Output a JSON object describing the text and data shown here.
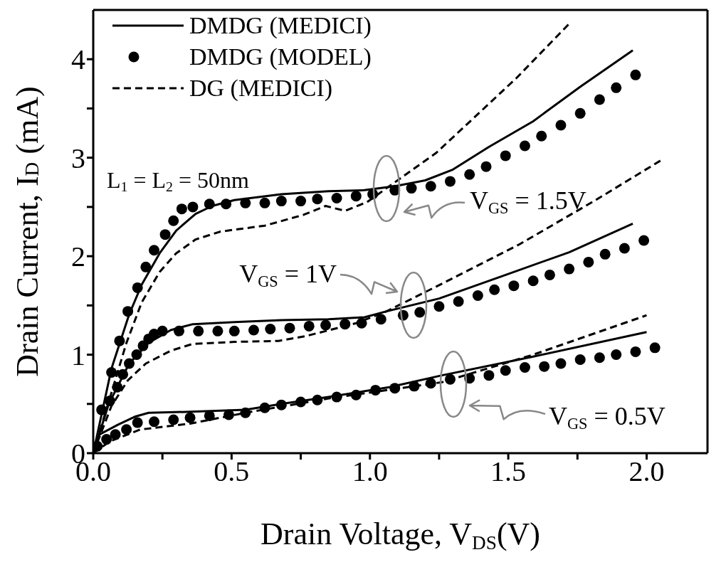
{
  "chart_data": {
    "type": "line",
    "xlabel": "Drain Voltage, V$_{DS}$(V)",
    "ylabel": "Drain Current, I$_{D}$ (mA)",
    "xlim": [
      0,
      2.22
    ],
    "ylim": [
      0,
      4.5
    ],
    "xticks": [
      {
        "value": 0,
        "label": "0.0"
      },
      {
        "value": 0.25,
        "label": null
      },
      {
        "value": 0.5,
        "label": "0.5"
      },
      {
        "value": 0.75,
        "label": null
      },
      {
        "value": 1,
        "label": "1.0"
      },
      {
        "value": 1.25,
        "label": null
      },
      {
        "value": 1.5,
        "label": "1.5"
      },
      {
        "value": 1.75,
        "label": null
      },
      {
        "value": 2,
        "label": "2.0"
      }
    ],
    "yticks": [
      0,
      {
        "value": 0.5,
        "label": null
      },
      1,
      {
        "value": 1.5,
        "label": null
      },
      2,
      {
        "value": 2.5,
        "label": null
      },
      3,
      {
        "value": 3.5,
        "label": null
      },
      4
    ],
    "legend": "top left",
    "series": [
      {
        "name": "DMDG (MEDICI)",
        "type": "line",
        "line_style": "solid",
        "marker": "none",
        "color": "#000000",
        "x": [
          0,
          0.066,
          0.13,
          0.175,
          0.24,
          0.3,
          0.37,
          0.43,
          0.51,
          0.68,
          0.85,
          0.98,
          1.09,
          1.2,
          1.3,
          1.43,
          1.59,
          1.76,
          1.95
        ],
        "values": [
          0,
          0.86,
          1.41,
          1.71,
          2.03,
          2.26,
          2.43,
          2.51,
          2.57,
          2.63,
          2.66,
          2.67,
          2.71,
          2.77,
          2.88,
          3.11,
          3.37,
          3.72,
          4.09
        ]
      },
      {
        "name": "DMDG (MODEL)",
        "type": "scatter",
        "marker": "circle",
        "color": "#000000",
        "x": [
          0.03,
          0.066,
          0.095,
          0.125,
          0.16,
          0.19,
          0.22,
          0.26,
          0.29,
          0.32,
          0.36,
          0.42,
          0.48,
          0.55,
          0.62,
          0.68,
          0.75,
          0.81,
          0.88,
          0.95,
          1.01,
          1.09,
          1.15,
          1.22,
          1.29,
          1.36,
          1.42,
          1.49,
          1.56,
          1.62,
          1.69,
          1.76,
          1.83,
          1.89,
          1.96
        ],
        "values": [
          0.44,
          0.82,
          1.14,
          1.44,
          1.68,
          1.89,
          2.06,
          2.22,
          2.36,
          2.48,
          2.5,
          2.53,
          2.53,
          2.54,
          2.54,
          2.56,
          2.56,
          2.58,
          2.59,
          2.61,
          2.63,
          2.67,
          2.69,
          2.71,
          2.76,
          2.83,
          2.91,
          3.02,
          3.12,
          3.22,
          3.33,
          3.45,
          3.59,
          3.71,
          3.84
        ]
      },
      {
        "name": "DG (MEDICI)",
        "type": "line",
        "line_style": "dashed",
        "marker": "none",
        "color": "#000000",
        "x": [
          0,
          0.12,
          0.175,
          0.24,
          0.3,
          0.37,
          0.46,
          0.62,
          0.76,
          0.84,
          0.91,
          0.99,
          1.1,
          1.24,
          1.37,
          1.53,
          1.72
        ],
        "values": [
          0,
          1.12,
          1.53,
          1.84,
          2.03,
          2.17,
          2.25,
          2.31,
          2.42,
          2.51,
          2.46,
          2.55,
          2.77,
          3.05,
          3.39,
          3.81,
          4.36
        ]
      },
      {
        "type": "line",
        "line_style": "solid",
        "marker": "none",
        "color": "#000000",
        "x": [
          0,
          0.056,
          0.13,
          0.2,
          0.28,
          0.36,
          0.51,
          0.68,
          0.85,
          0.98,
          1.06,
          1.25,
          1.48,
          1.72,
          1.95
        ],
        "values": [
          0,
          0.5,
          0.91,
          1.12,
          1.25,
          1.31,
          1.33,
          1.35,
          1.36,
          1.38,
          1.44,
          1.57,
          1.8,
          2.04,
          2.33
        ]
      },
      {
        "type": "scatter",
        "marker": "circle",
        "color": "#000000",
        "x": [
          0.06,
          0.087,
          0.107,
          0.13,
          0.157,
          0.18,
          0.2,
          0.22,
          0.25,
          0.31,
          0.38,
          0.45,
          0.51,
          0.58,
          0.64,
          0.71,
          0.78,
          0.84,
          0.91,
          0.97,
          1.04,
          1.12,
          1.18,
          1.25,
          1.32,
          1.39,
          1.45,
          1.52,
          1.59,
          1.65,
          1.72,
          1.79,
          1.85,
          1.92,
          1.99
        ],
        "values": [
          0.53,
          0.67,
          0.8,
          0.91,
          1,
          1.09,
          1.16,
          1.21,
          1.24,
          1.24,
          1.24,
          1.24,
          1.24,
          1.25,
          1.26,
          1.27,
          1.29,
          1.3,
          1.31,
          1.32,
          1.36,
          1.4,
          1.43,
          1.49,
          1.54,
          1.6,
          1.66,
          1.7,
          1.75,
          1.81,
          1.87,
          1.94,
          2.02,
          2.08,
          2.16
        ]
      },
      {
        "type": "line",
        "line_style": "dashed",
        "marker": "none",
        "color": "#000000",
        "x": [
          0,
          0.066,
          0.125,
          0.19,
          0.28,
          0.36,
          0.51,
          0.67,
          0.77,
          0.84,
          0.95,
          1.06,
          1.26,
          1.54,
          1.81,
          2.05
        ],
        "values": [
          0,
          0.48,
          0.74,
          0.91,
          1.04,
          1.11,
          1.13,
          1.14,
          1.19,
          1.24,
          1.32,
          1.44,
          1.72,
          2.12,
          2.56,
          2.97
        ]
      },
      {
        "type": "line",
        "line_style": "solid",
        "marker": "none",
        "color": "#000000",
        "x": [
          0,
          0.023,
          0.09,
          0.15,
          0.2,
          0.35,
          0.55,
          0.68,
          0.85,
          1.07,
          1.26,
          1.59,
          2
        ],
        "values": [
          0,
          0.19,
          0.29,
          0.37,
          0.41,
          0.42,
          0.44,
          0.5,
          0.57,
          0.67,
          0.79,
          0.98,
          1.23
        ]
      },
      {
        "type": "scatter",
        "marker": "circle",
        "color": "#000000",
        "x": [
          0.015,
          0.048,
          0.08,
          0.12,
          0.16,
          0.22,
          0.29,
          0.35,
          0.42,
          0.49,
          0.55,
          0.62,
          0.68,
          0.75,
          0.81,
          0.88,
          0.95,
          1.02,
          1.09,
          1.16,
          1.22,
          1.29,
          1.36,
          1.43,
          1.49,
          1.56,
          1.63,
          1.69,
          1.76,
          1.83,
          1.89,
          1.96,
          2.03
        ],
        "values": [
          0.07,
          0.14,
          0.19,
          0.24,
          0.31,
          0.32,
          0.34,
          0.36,
          0.38,
          0.39,
          0.41,
          0.46,
          0.49,
          0.52,
          0.54,
          0.57,
          0.59,
          0.64,
          0.66,
          0.68,
          0.71,
          0.75,
          0.76,
          0.79,
          0.84,
          0.87,
          0.88,
          0.91,
          0.95,
          0.97,
          1,
          1.03,
          1.07
        ]
      },
      {
        "type": "line",
        "line_style": "dashed",
        "marker": "none",
        "color": "#000000",
        "x": [
          0,
          0.06,
          0.17,
          0.35,
          0.55,
          0.86,
          1.26,
          1.59,
          2
        ],
        "values": [
          0,
          0.12,
          0.24,
          0.3,
          0.41,
          0.56,
          0.72,
          1,
          1.4
        ]
      }
    ],
    "annotations": [
      "L$_{1}$ = L$_{2}$ = 50nm",
      "V$_{GS}$ = 1.5V",
      "V$_{GS}$ = 1V",
      "V$_{GS}$ = 0.5V"
    ]
  }
}
